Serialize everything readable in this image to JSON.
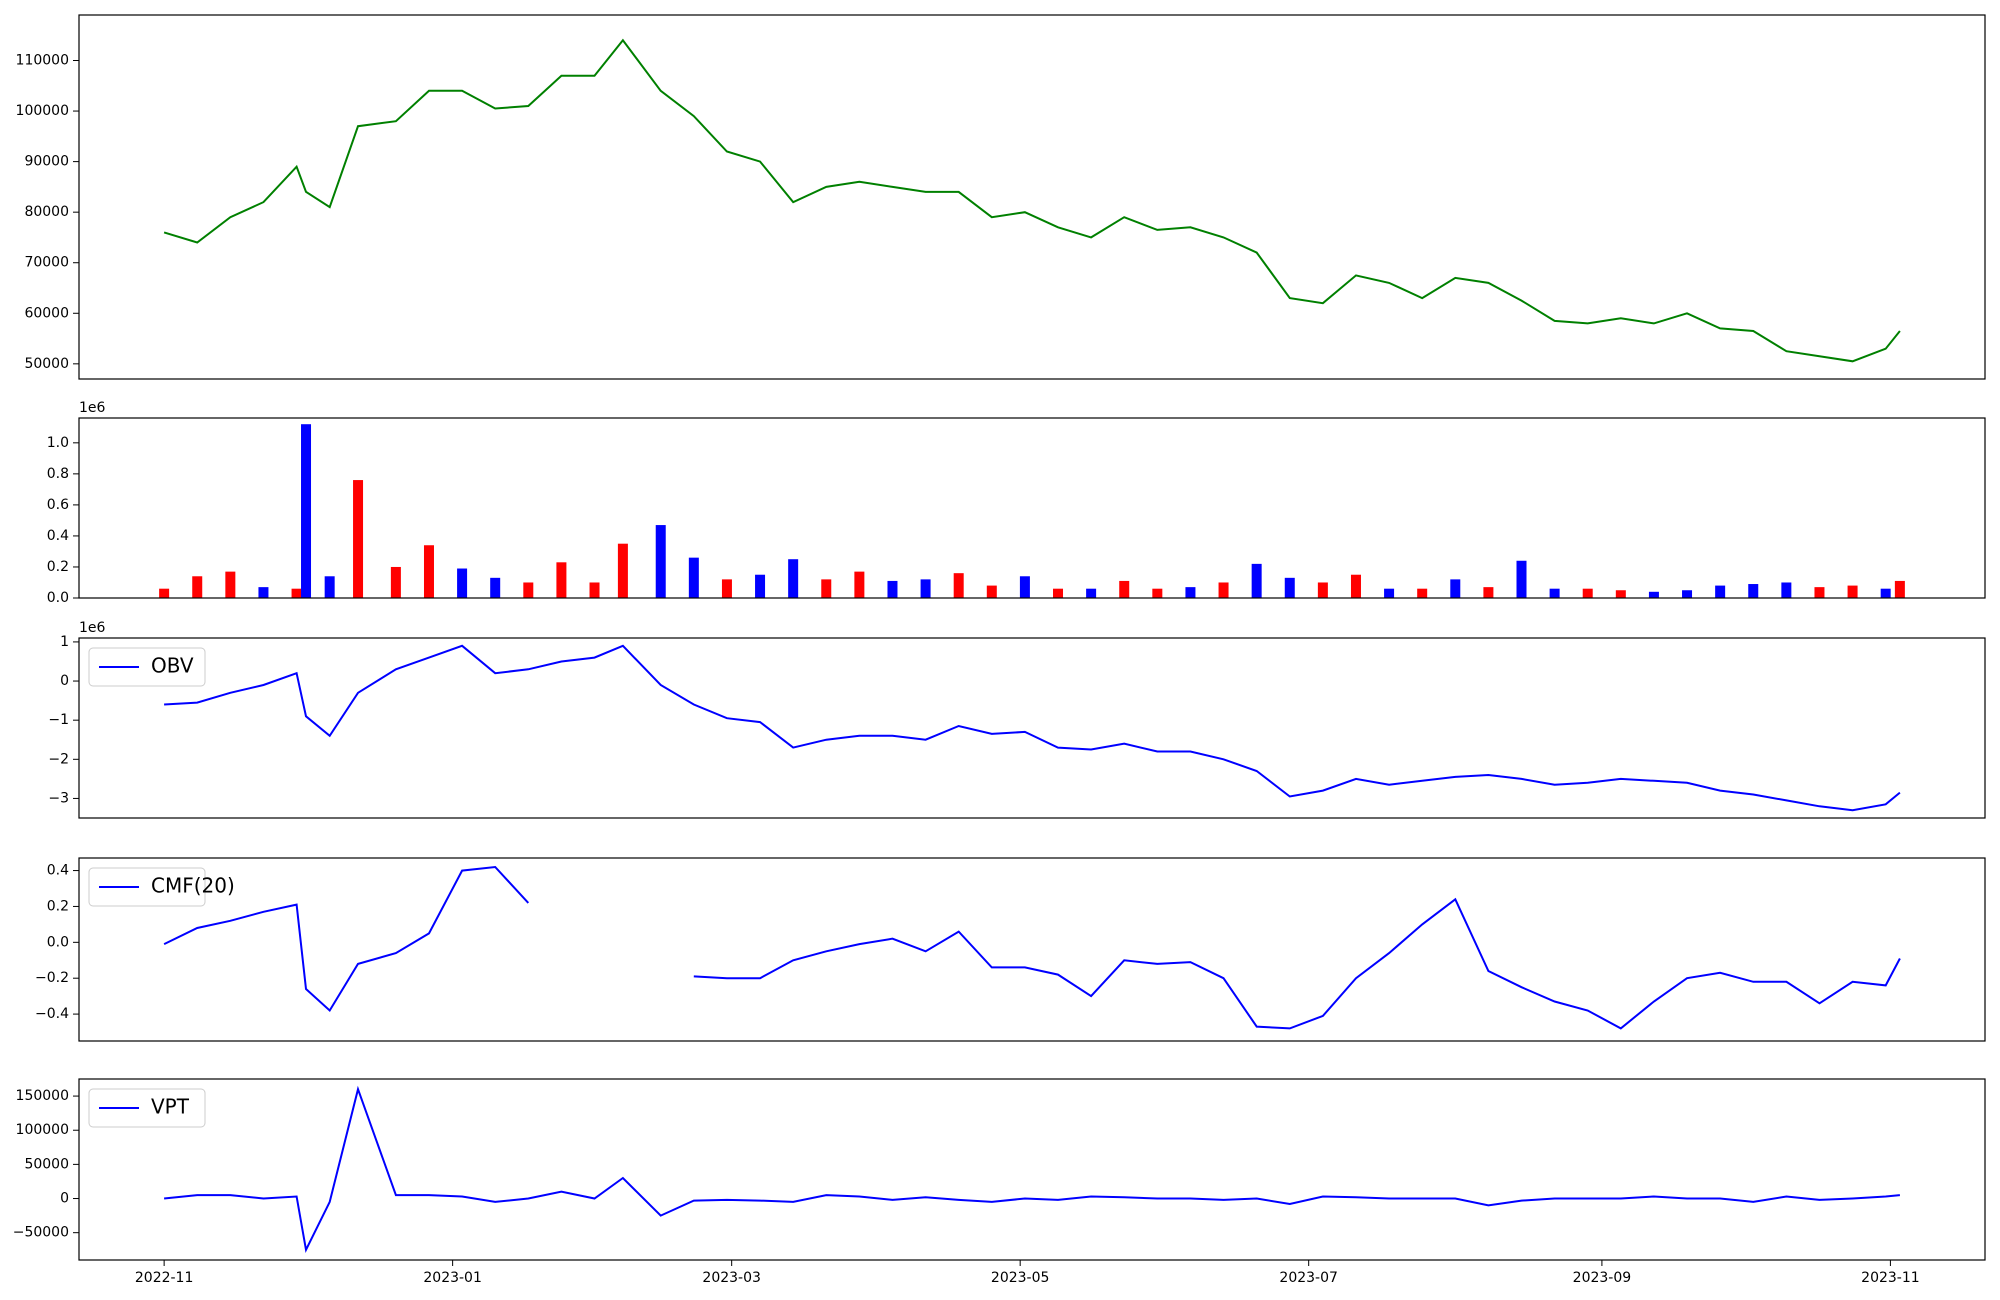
{
  "chart_data": [
    {
      "type": "line",
      "color": "#008000",
      "x": [
        "2022-11-01",
        "2022-11-08",
        "2022-11-15",
        "2022-11-22",
        "2022-11-29",
        "2022-12-01",
        "2022-12-06",
        "2022-12-12",
        "2022-12-20",
        "2022-12-27",
        "2023-01-03",
        "2023-01-10",
        "2023-01-17",
        "2023-01-24",
        "2023-01-31",
        "2023-02-06",
        "2023-02-14",
        "2023-02-21",
        "2023-02-28",
        "2023-03-07",
        "2023-03-14",
        "2023-03-21",
        "2023-03-28",
        "2023-04-04",
        "2023-04-11",
        "2023-04-18",
        "2023-04-25",
        "2023-05-02",
        "2023-05-09",
        "2023-05-16",
        "2023-05-23",
        "2023-05-30",
        "2023-06-06",
        "2023-06-13",
        "2023-06-20",
        "2023-06-27",
        "2023-07-04",
        "2023-07-11",
        "2023-07-18",
        "2023-07-25",
        "2023-08-01",
        "2023-08-08",
        "2023-08-15",
        "2023-08-22",
        "2023-08-29",
        "2023-09-05",
        "2023-09-12",
        "2023-09-19",
        "2023-09-26",
        "2023-10-03",
        "2023-10-10",
        "2023-10-17",
        "2023-10-24",
        "2023-10-31",
        "2023-11-03"
      ],
      "values": [
        76000,
        74000,
        79000,
        82000,
        89000,
        84000,
        81000,
        97000,
        98000,
        104000,
        104000,
        100500,
        101000,
        107000,
        107000,
        114000,
        104000,
        99000,
        92000,
        90000,
        82000,
        85000,
        86000,
        85000,
        84000,
        84000,
        79000,
        80000,
        77000,
        75000,
        79000,
        76500,
        77000,
        75000,
        72000,
        63000,
        62000,
        67500,
        66000,
        63000,
        67000,
        66000,
        62500,
        58500,
        58000,
        59000,
        58000,
        60000,
        57000,
        56500,
        52500,
        51500,
        50500,
        53000,
        56500
      ],
      "ylim": [
        47000,
        119000
      ],
      "yticks": [
        50000,
        60000,
        70000,
        80000,
        90000,
        100000,
        110000
      ]
    },
    {
      "type": "bar",
      "offset_text": "1e6",
      "x": [
        "2022-11-01",
        "2022-11-08",
        "2022-11-15",
        "2022-11-22",
        "2022-11-29",
        "2022-12-01",
        "2022-12-06",
        "2022-12-12",
        "2022-12-20",
        "2022-12-27",
        "2023-01-03",
        "2023-01-10",
        "2023-01-17",
        "2023-01-24",
        "2023-01-31",
        "2023-02-06",
        "2023-02-14",
        "2023-02-21",
        "2023-02-28",
        "2023-03-07",
        "2023-03-14",
        "2023-03-21",
        "2023-03-28",
        "2023-04-04",
        "2023-04-11",
        "2023-04-18",
        "2023-04-25",
        "2023-05-02",
        "2023-05-09",
        "2023-05-16",
        "2023-05-23",
        "2023-05-30",
        "2023-06-06",
        "2023-06-13",
        "2023-06-20",
        "2023-06-27",
        "2023-07-04",
        "2023-07-11",
        "2023-07-18",
        "2023-07-25",
        "2023-08-01",
        "2023-08-08",
        "2023-08-15",
        "2023-08-22",
        "2023-08-29",
        "2023-09-05",
        "2023-09-12",
        "2023-09-19",
        "2023-09-26",
        "2023-10-03",
        "2023-10-10",
        "2023-10-17",
        "2023-10-24",
        "2023-10-31",
        "2023-11-03"
      ],
      "values": [
        0.06,
        0.14,
        0.17,
        0.07,
        0.06,
        1.12,
        0.14,
        0.76,
        0.2,
        0.34,
        0.19,
        0.13,
        0.1,
        0.23,
        0.1,
        0.35,
        0.47,
        0.26,
        0.12,
        0.15,
        0.25,
        0.12,
        0.17,
        0.11,
        0.12,
        0.16,
        0.08,
        0.14,
        0.06,
        0.06,
        0.11,
        0.06,
        0.07,
        0.1,
        0.22,
        0.13,
        0.1,
        0.15,
        0.06,
        0.06,
        0.12,
        0.07,
        0.24,
        0.06,
        0.06,
        0.05,
        0.04,
        0.05,
        0.08,
        0.09,
        0.1,
        0.07,
        0.08,
        0.06,
        0.11
      ],
      "colors": [
        "red",
        "red",
        "red",
        "blue",
        "red",
        "blue",
        "blue",
        "red",
        "red",
        "red",
        "blue",
        "blue",
        "red",
        "red",
        "red",
        "red",
        "blue",
        "blue",
        "red",
        "blue",
        "blue",
        "red",
        "red",
        "blue",
        "blue",
        "red",
        "red",
        "blue",
        "red",
        "blue",
        "red",
        "red",
        "blue",
        "red",
        "blue",
        "blue",
        "red",
        "red",
        "blue",
        "red",
        "blue",
        "red",
        "blue",
        "blue",
        "red",
        "red",
        "blue",
        "blue",
        "blue",
        "blue",
        "blue",
        "red",
        "red",
        "blue",
        "red"
      ],
      "ylim": [
        0,
        1.16
      ],
      "yticks": [
        {
          "value": 0,
          "label": "0.0"
        },
        0.2,
        0.4,
        0.6,
        0.8,
        {
          "value": 1,
          "label": "1.0"
        }
      ]
    },
    {
      "type": "line",
      "offset_text": "1e6",
      "legend": "upper left",
      "x": [
        "2022-11-01",
        "2022-11-08",
        "2022-11-15",
        "2022-11-22",
        "2022-11-29",
        "2022-12-01",
        "2022-12-06",
        "2022-12-12",
        "2022-12-20",
        "2022-12-27",
        "2023-01-03",
        "2023-01-10",
        "2023-01-17",
        "2023-01-24",
        "2023-01-31",
        "2023-02-06",
        "2023-02-14",
        "2023-02-21",
        "2023-02-28",
        "2023-03-07",
        "2023-03-14",
        "2023-03-21",
        "2023-03-28",
        "2023-04-04",
        "2023-04-11",
        "2023-04-18",
        "2023-04-25",
        "2023-05-02",
        "2023-05-09",
        "2023-05-16",
        "2023-05-23",
        "2023-05-30",
        "2023-06-06",
        "2023-06-13",
        "2023-06-20",
        "2023-06-27",
        "2023-07-04",
        "2023-07-11",
        "2023-07-18",
        "2023-07-25",
        "2023-08-01",
        "2023-08-08",
        "2023-08-15",
        "2023-08-22",
        "2023-08-29",
        "2023-09-05",
        "2023-09-12",
        "2023-09-19",
        "2023-09-26",
        "2023-10-03",
        "2023-10-10",
        "2023-10-17",
        "2023-10-24",
        "2023-10-31",
        "2023-11-03"
      ],
      "series": [
        {
          "name": "OBV",
          "color": "blue",
          "values": [
            -0.6,
            -0.55,
            -0.3,
            -0.1,
            0.2,
            -0.9,
            -1.4,
            -0.3,
            0.3,
            0.6,
            0.9,
            0.2,
            0.3,
            0.5,
            0.6,
            0.9,
            -0.1,
            -0.6,
            -0.95,
            -1.05,
            -1.7,
            -1.5,
            -1.4,
            -1.4,
            -1.5,
            -1.15,
            -1.35,
            -1.3,
            -1.7,
            -1.75,
            -1.6,
            -1.8,
            -1.8,
            -2.0,
            -2.3,
            -2.95,
            -2.8,
            -2.5,
            -2.65,
            -2.55,
            -2.45,
            -2.4,
            -2.5,
            -2.65,
            -2.6,
            -2.5,
            -2.55,
            -2.6,
            -2.8,
            -2.9,
            -3.05,
            -3.2,
            -3.3,
            -3.15,
            -2.85
          ]
        }
      ],
      "ylim": [
        -3.5,
        1.1
      ],
      "yticks": [
        {
          "value": -3,
          "label": "−3"
        },
        {
          "value": -2,
          "label": "−2"
        },
        {
          "value": -1,
          "label": "−1"
        },
        0,
        1
      ]
    },
    {
      "type": "line",
      "legend": "upper left",
      "x": [
        "2022-11-01",
        "2022-11-08",
        "2022-11-15",
        "2022-11-22",
        "2022-11-29",
        "2022-12-01",
        "2022-12-06",
        "2022-12-12",
        "2022-12-20",
        "2022-12-27",
        "2023-01-03",
        "2023-01-10",
        "2023-01-17",
        "2023-01-24",
        "2023-01-31",
        "2023-02-06",
        "2023-02-14",
        "2023-02-21",
        "2023-02-28",
        "2023-03-07",
        "2023-03-14",
        "2023-03-21",
        "2023-03-28",
        "2023-04-04",
        "2023-04-11",
        "2023-04-18",
        "2023-04-25",
        "2023-05-02",
        "2023-05-09",
        "2023-05-16",
        "2023-05-23",
        "2023-05-30",
        "2023-06-06",
        "2023-06-13",
        "2023-06-20",
        "2023-06-27",
        "2023-07-04",
        "2023-07-11",
        "2023-07-18",
        "2023-07-25",
        "2023-08-01",
        "2023-08-08",
        "2023-08-15",
        "2023-08-22",
        "2023-08-29",
        "2023-09-05",
        "2023-09-12",
        "2023-09-19",
        "2023-09-26",
        "2023-10-03",
        "2023-10-10",
        "2023-10-17",
        "2023-10-24",
        "2023-10-31",
        "2023-11-03"
      ],
      "series": [
        {
          "name": "CMF(20)",
          "color": "blue",
          "values": [
            -0.01,
            0.08,
            0.12,
            0.17,
            0.21,
            -0.26,
            -0.38,
            -0.12,
            -0.06,
            0.05,
            0.4,
            0.42,
            0.22,
            null,
            null,
            null,
            null,
            -0.19,
            -0.2,
            -0.2,
            -0.1,
            -0.05,
            -0.01,
            0.02,
            -0.05,
            0.06,
            -0.14,
            -0.14,
            -0.18,
            -0.3,
            -0.1,
            -0.12,
            -0.11,
            -0.2,
            -0.47,
            -0.48,
            -0.41,
            -0.2,
            -0.06,
            0.1,
            0.24,
            -0.16,
            -0.25,
            -0.33,
            -0.38,
            -0.48,
            -0.33,
            -0.2,
            -0.17,
            -0.22,
            -0.22,
            -0.34,
            -0.22,
            -0.24,
            -0.09
          ]
        }
      ],
      "ylim": [
        -0.55,
        0.47
      ],
      "yticks": [
        {
          "value": -0.4,
          "label": "−0.4"
        },
        {
          "value": -0.2,
          "label": "−0.2"
        },
        {
          "value": 0,
          "label": "0.0"
        },
        0.2,
        0.4
      ]
    },
    {
      "type": "line",
      "legend": "upper left",
      "x": [
        "2022-11-01",
        "2022-11-08",
        "2022-11-15",
        "2022-11-22",
        "2022-11-29",
        "2022-12-01",
        "2022-12-06",
        "2022-12-12",
        "2022-12-20",
        "2022-12-27",
        "2023-01-03",
        "2023-01-10",
        "2023-01-17",
        "2023-01-24",
        "2023-01-31",
        "2023-02-06",
        "2023-02-14",
        "2023-02-21",
        "2023-02-28",
        "2023-03-07",
        "2023-03-14",
        "2023-03-21",
        "2023-03-28",
        "2023-04-04",
        "2023-04-11",
        "2023-04-18",
        "2023-04-25",
        "2023-05-02",
        "2023-05-09",
        "2023-05-16",
        "2023-05-23",
        "2023-05-30",
        "2023-06-06",
        "2023-06-13",
        "2023-06-20",
        "2023-06-27",
        "2023-07-04",
        "2023-07-11",
        "2023-07-18",
        "2023-07-25",
        "2023-08-01",
        "2023-08-08",
        "2023-08-15",
        "2023-08-22",
        "2023-08-29",
        "2023-09-05",
        "2023-09-12",
        "2023-09-19",
        "2023-09-26",
        "2023-10-03",
        "2023-10-10",
        "2023-10-17",
        "2023-10-24",
        "2023-10-31",
        "2023-11-03"
      ],
      "series": [
        {
          "name": "VPT",
          "color": "blue",
          "values": [
            0,
            5000,
            5000,
            0,
            3000,
            -75000,
            -5000,
            160000,
            5000,
            5000,
            3000,
            -5000,
            0,
            10000,
            0,
            30000,
            -25000,
            -3000,
            -2000,
            -3000,
            -5000,
            5000,
            3000,
            -2000,
            2000,
            -2000,
            -5000,
            0,
            -2000,
            3000,
            2000,
            0,
            0,
            -2000,
            0,
            -8000,
            3000,
            2000,
            0,
            0,
            0,
            -10000,
            -3000,
            0,
            0,
            0,
            3000,
            0,
            0,
            -5000,
            3000,
            -2000,
            0,
            3000,
            5000
          ]
        }
      ],
      "ylim": [
        -90000,
        175000
      ],
      "yticks": [
        {
          "value": -50000,
          "label": "−50000"
        },
        0,
        50000,
        100000,
        150000
      ],
      "xlim": [
        "2022-10-14",
        "2023-11-21"
      ],
      "xticks": [
        {
          "value": "2022-11-01",
          "label": "2022-11"
        },
        {
          "value": "2023-01-01",
          "label": "2023-01"
        },
        {
          "value": "2023-03-01",
          "label": "2023-03"
        },
        {
          "value": "2023-05-01",
          "label": "2023-05"
        },
        {
          "value": "2023-07-01",
          "label": "2023-07"
        },
        {
          "value": "2023-09-01",
          "label": "2023-09"
        },
        {
          "value": "2023-11-01",
          "label": "2023-11"
        }
      ]
    }
  ]
}
